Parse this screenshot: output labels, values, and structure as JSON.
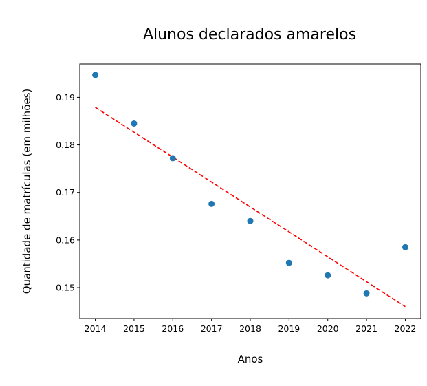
{
  "chart_data": {
    "type": "scatter",
    "title": "Alunos declarados amarelos",
    "xlabel": "Anos",
    "ylabel": "Quantidade de matrículas (em milhões)",
    "x": [
      2014,
      2015,
      2016,
      2017,
      2018,
      2019,
      2020,
      2021,
      2022
    ],
    "xticks": [
      "2014",
      "2015",
      "2016",
      "2017",
      "2018",
      "2019",
      "2020",
      "2021",
      "2022"
    ],
    "yticks": [
      "0.15",
      "0.16",
      "0.17",
      "0.18",
      "0.19"
    ],
    "xlim": [
      2013.6,
      2022.4
    ],
    "ylim": [
      0.1435,
      0.197
    ],
    "grid": false,
    "series": [
      {
        "values": [
          0.1947,
          0.1845,
          0.1772,
          0.1676,
          0.164,
          0.1552,
          0.1526,
          0.1488,
          0.1585
        ],
        "color": "#1f77b4",
        "style": "markers"
      }
    ],
    "trendline": {
      "x": [
        2014,
        2022
      ],
      "y": [
        0.1879,
        0.146
      ],
      "color": "#ff0000",
      "style": "dashed"
    }
  }
}
